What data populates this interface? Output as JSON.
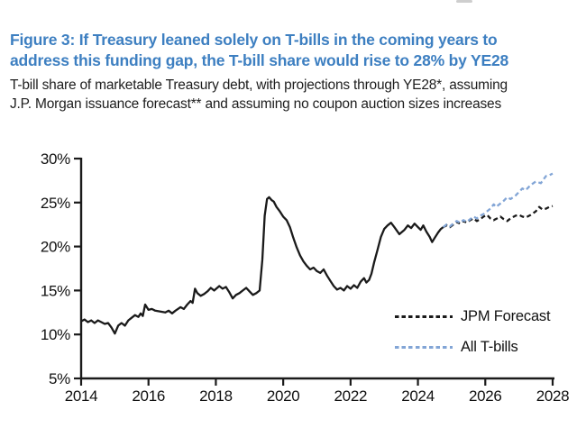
{
  "figure": {
    "title_lines": [
      "Figure 3: If Treasury leaned solely on T-bills in the coming years to",
      "address this funding gap, the T-bill share would rise to 28% by YE28"
    ],
    "subtitle_lines": [
      "T-bill share of marketable Treasury debt, with projections through YE28*, assuming",
      "J.P. Morgan issuance forecast** and assuming no coupon auction sizes increases"
    ],
    "title_color": "#3d7fc1",
    "text_color": "#1d1d1d"
  },
  "chart_data": {
    "type": "line",
    "title": "Figure 3: If Treasury leaned solely on T-bills in the coming years to address this funding gap, the T-bill share would rise to 28% by YE28",
    "subtitle": "T-bill share of marketable Treasury debt, with projections through YE28*, assuming J.P. Morgan issuance forecast** and assuming no coupon auction sizes increases",
    "xlabel": "",
    "ylabel": "",
    "x_range": [
      2014,
      2028
    ],
    "ylim": [
      5,
      30
    ],
    "grid": false,
    "y_ticks": [
      5,
      10,
      15,
      20,
      25,
      30
    ],
    "y_tick_labels": [
      "5%",
      "10%",
      "15%",
      "20%",
      "25%",
      "30%"
    ],
    "x_ticks": [
      2014,
      2016,
      2018,
      2020,
      2022,
      2024,
      2026,
      2028
    ],
    "x_tick_labels": [
      "2014",
      "2016",
      "2018",
      "2020",
      "2022",
      "2024",
      "2026",
      "2028"
    ],
    "axis_color": "#1a1a1a",
    "legend_position": "inside-right",
    "legend": [
      {
        "label": "JPM Forecast",
        "color": "#1a1a1a"
      },
      {
        "label": "All T-bills",
        "color": "#82a5d6"
      }
    ],
    "series": [
      {
        "name": "T-bill share (historical)",
        "style": "solid",
        "color": "#1a1a1a",
        "points": [
          [
            2014.0,
            11.5
          ],
          [
            2014.1,
            11.7
          ],
          [
            2014.2,
            11.4
          ],
          [
            2014.3,
            11.6
          ],
          [
            2014.4,
            11.3
          ],
          [
            2014.5,
            11.6
          ],
          [
            2014.6,
            11.4
          ],
          [
            2014.7,
            11.2
          ],
          [
            2014.8,
            11.3
          ],
          [
            2014.9,
            10.8
          ],
          [
            2015.0,
            10.1
          ],
          [
            2015.1,
            11.0
          ],
          [
            2015.2,
            11.3
          ],
          [
            2015.3,
            11.0
          ],
          [
            2015.4,
            11.6
          ],
          [
            2015.5,
            11.9
          ],
          [
            2015.6,
            12.2
          ],
          [
            2015.7,
            12.0
          ],
          [
            2015.77,
            12.4
          ],
          [
            2015.83,
            12.1
          ],
          [
            2015.9,
            13.4
          ],
          [
            2016.0,
            12.8
          ],
          [
            2016.1,
            12.9
          ],
          [
            2016.2,
            12.7
          ],
          [
            2016.35,
            12.6
          ],
          [
            2016.5,
            12.5
          ],
          [
            2016.6,
            12.7
          ],
          [
            2016.7,
            12.4
          ],
          [
            2016.8,
            12.7
          ],
          [
            2016.95,
            13.1
          ],
          [
            2017.05,
            12.9
          ],
          [
            2017.15,
            13.4
          ],
          [
            2017.25,
            13.8
          ],
          [
            2017.31,
            13.6
          ],
          [
            2017.38,
            15.2
          ],
          [
            2017.45,
            14.7
          ],
          [
            2017.55,
            14.4
          ],
          [
            2017.65,
            14.6
          ],
          [
            2017.75,
            14.9
          ],
          [
            2017.85,
            15.3
          ],
          [
            2017.95,
            15.0
          ],
          [
            2018.1,
            15.5
          ],
          [
            2018.2,
            15.2
          ],
          [
            2018.3,
            15.4
          ],
          [
            2018.4,
            14.8
          ],
          [
            2018.5,
            14.1
          ],
          [
            2018.6,
            14.5
          ],
          [
            2018.7,
            14.7
          ],
          [
            2018.8,
            15.0
          ],
          [
            2018.9,
            15.3
          ],
          [
            2019.0,
            14.9
          ],
          [
            2019.1,
            14.5
          ],
          [
            2019.2,
            14.7
          ],
          [
            2019.3,
            15.0
          ],
          [
            2019.38,
            18.5
          ],
          [
            2019.45,
            23.5
          ],
          [
            2019.52,
            25.4
          ],
          [
            2019.58,
            25.6
          ],
          [
            2019.65,
            25.3
          ],
          [
            2019.72,
            25.1
          ],
          [
            2019.8,
            24.5
          ],
          [
            2019.9,
            24.0
          ],
          [
            2020.0,
            23.4
          ],
          [
            2020.1,
            23.0
          ],
          [
            2020.2,
            22.2
          ],
          [
            2020.3,
            21.0
          ],
          [
            2020.4,
            19.9
          ],
          [
            2020.5,
            19.0
          ],
          [
            2020.6,
            18.3
          ],
          [
            2020.7,
            17.8
          ],
          [
            2020.8,
            17.4
          ],
          [
            2020.9,
            17.6
          ],
          [
            2021.0,
            17.2
          ],
          [
            2021.1,
            17.0
          ],
          [
            2021.2,
            17.4
          ],
          [
            2021.3,
            16.7
          ],
          [
            2021.4,
            16.1
          ],
          [
            2021.5,
            15.5
          ],
          [
            2021.6,
            15.1
          ],
          [
            2021.7,
            15.3
          ],
          [
            2021.8,
            15.0
          ],
          [
            2021.9,
            15.5
          ],
          [
            2022.0,
            15.2
          ],
          [
            2022.1,
            15.6
          ],
          [
            2022.2,
            15.3
          ],
          [
            2022.3,
            16.0
          ],
          [
            2022.4,
            16.4
          ],
          [
            2022.47,
            15.9
          ],
          [
            2022.55,
            16.2
          ],
          [
            2022.62,
            16.9
          ],
          [
            2022.7,
            18.2
          ],
          [
            2022.8,
            19.6
          ],
          [
            2022.9,
            21.1
          ],
          [
            2023.0,
            22.0
          ],
          [
            2023.1,
            22.4
          ],
          [
            2023.2,
            22.7
          ],
          [
            2023.3,
            22.2
          ],
          [
            2023.45,
            21.4
          ],
          [
            2023.6,
            21.9
          ],
          [
            2023.7,
            22.4
          ],
          [
            2023.8,
            22.1
          ],
          [
            2023.9,
            22.6
          ],
          [
            2024.0,
            22.2
          ],
          [
            2024.08,
            21.9
          ],
          [
            2024.16,
            22.4
          ],
          [
            2024.25,
            21.7
          ],
          [
            2024.35,
            21.1
          ],
          [
            2024.42,
            20.5
          ],
          [
            2024.5,
            21.0
          ],
          [
            2024.6,
            21.6
          ],
          [
            2024.68,
            22.0
          ],
          [
            2024.75,
            22.2
          ]
        ]
      },
      {
        "name": "JPM Forecast",
        "style": "dashed",
        "color": "#1a1a1a",
        "points": [
          [
            2024.75,
            22.2
          ],
          [
            2024.85,
            22.4
          ],
          [
            2024.95,
            22.2
          ],
          [
            2025.05,
            22.5
          ],
          [
            2025.15,
            22.8
          ],
          [
            2025.25,
            22.6
          ],
          [
            2025.35,
            22.9
          ],
          [
            2025.45,
            22.7
          ],
          [
            2025.55,
            23.0
          ],
          [
            2025.65,
            23.2
          ],
          [
            2025.75,
            22.9
          ],
          [
            2025.85,
            23.1
          ],
          [
            2025.95,
            23.4
          ],
          [
            2026.05,
            23.6
          ],
          [
            2026.15,
            23.2
          ],
          [
            2026.25,
            23.0
          ],
          [
            2026.35,
            23.2
          ],
          [
            2026.45,
            23.4
          ],
          [
            2026.55,
            23.1
          ],
          [
            2026.65,
            22.9
          ],
          [
            2026.75,
            23.2
          ],
          [
            2026.9,
            23.5
          ],
          [
            2027.0,
            23.6
          ],
          [
            2027.1,
            23.4
          ],
          [
            2027.2,
            23.3
          ],
          [
            2027.35,
            23.6
          ],
          [
            2027.5,
            24.0
          ],
          [
            2027.6,
            24.5
          ],
          [
            2027.7,
            24.2
          ],
          [
            2027.8,
            24.3
          ],
          [
            2027.9,
            24.5
          ],
          [
            2028.0,
            24.6
          ]
        ]
      },
      {
        "name": "All T-bills",
        "style": "dashed",
        "color": "#82a5d6",
        "points": [
          [
            2024.75,
            22.2
          ],
          [
            2024.85,
            22.5
          ],
          [
            2024.95,
            22.3
          ],
          [
            2025.05,
            22.6
          ],
          [
            2025.15,
            22.9
          ],
          [
            2025.25,
            22.7
          ],
          [
            2025.35,
            23.0
          ],
          [
            2025.45,
            22.8
          ],
          [
            2025.55,
            23.1
          ],
          [
            2025.65,
            23.4
          ],
          [
            2025.75,
            23.2
          ],
          [
            2025.85,
            23.5
          ],
          [
            2025.95,
            23.7
          ],
          [
            2026.05,
            24.0
          ],
          [
            2026.15,
            24.3
          ],
          [
            2026.25,
            24.8
          ],
          [
            2026.32,
            24.5
          ],
          [
            2026.45,
            24.9
          ],
          [
            2026.55,
            25.2
          ],
          [
            2026.65,
            25.6
          ],
          [
            2026.75,
            25.4
          ],
          [
            2026.9,
            25.8
          ],
          [
            2027.0,
            26.2
          ],
          [
            2027.1,
            26.6
          ],
          [
            2027.2,
            26.4
          ],
          [
            2027.35,
            27.0
          ],
          [
            2027.5,
            27.4
          ],
          [
            2027.65,
            27.2
          ],
          [
            2027.8,
            28.0
          ],
          [
            2027.9,
            28.1
          ],
          [
            2028.0,
            28.3
          ]
        ]
      }
    ]
  }
}
